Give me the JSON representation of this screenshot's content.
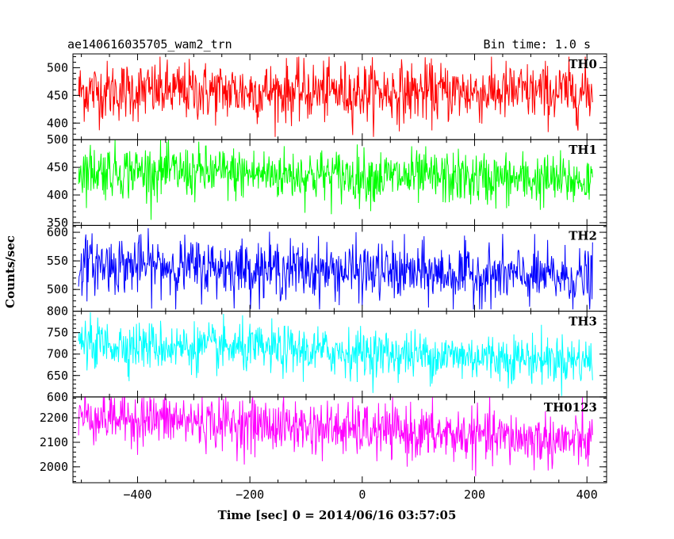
{
  "header": {
    "title": "ae140616035705_wam2_trn",
    "bin_time": "Bin time: 1.0 s"
  },
  "chart_data": {
    "type": "line",
    "xlabel": "Time [sec] 0 = 2014/06/16 03:57:05",
    "ylabel": "Counts/sec",
    "xlim": [
      -515,
      435
    ],
    "x_ticks": [
      "−400",
      "−200",
      "0",
      "200",
      "400"
    ],
    "x_tick_values": [
      -400,
      -200,
      0,
      200,
      400
    ],
    "x_range_data": [
      -505,
      410
    ],
    "panels": [
      {
        "name": "TH0",
        "color": "#ff0000",
        "ylim": [
          370,
          525
        ],
        "ticks": [
          400,
          450,
          500
        ],
        "tick_labels": [
          "400",
          "450",
          "500"
        ],
        "mean_start": 458,
        "mean_end": 455,
        "noise": 27,
        "min": 375,
        "max": 520
      },
      {
        "name": "TH1",
        "color": "#00ff00",
        "ylim": [
          345,
          500
        ],
        "ticks": [
          350,
          400,
          450,
          500
        ],
        "tick_labels": [
          "350",
          "400",
          "450",
          "500"
        ],
        "mean_start": 445,
        "mean_end": 425,
        "noise": 24,
        "min": 355,
        "max": 500
      },
      {
        "name": "TH2",
        "color": "#0000ff",
        "ylim": [
          462,
          612
        ],
        "ticks": [
          500,
          550,
          600
        ],
        "tick_labels": [
          "500",
          "550",
          "600"
        ],
        "mean_start": 545,
        "mean_end": 520,
        "noise": 25,
        "min": 465,
        "max": 612
      },
      {
        "name": "TH3",
        "color": "#00ffff",
        "ylim": [
          600,
          800
        ],
        "ticks": [
          600,
          650,
          700,
          750,
          800
        ],
        "tick_labels": [
          "600",
          "650",
          "700",
          "750",
          "800"
        ],
        "mean_start": 725,
        "mean_end": 685,
        "noise": 28,
        "min": 602,
        "max": 800
      },
      {
        "name": "TH0123",
        "color": "#ff00ff",
        "ylim": [
          1935,
          2285
        ],
        "ticks": [
          2000,
          2100,
          2200
        ],
        "tick_labels": [
          "2000",
          "2100",
          "2200"
        ],
        "mean_start": 2210,
        "mean_end": 2100,
        "noise": 55,
        "min": 1950,
        "max": 2285
      }
    ]
  }
}
